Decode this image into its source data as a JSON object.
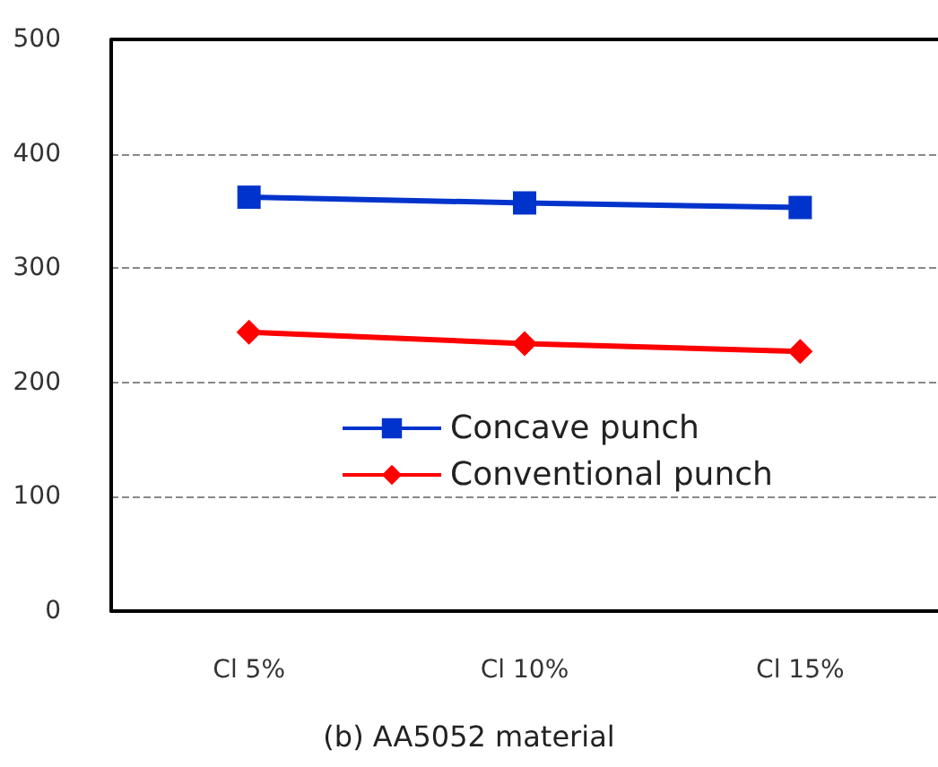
{
  "chart_data": {
    "type": "line",
    "title": "(b) AA5052 material",
    "categories": [
      "Cl 5%",
      "Cl 10%",
      "Cl 15%"
    ],
    "series": [
      {
        "name": "Concave punch",
        "color": "#0033cc",
        "values": [
          362,
          357,
          353
        ],
        "marker": "square"
      },
      {
        "name": "Conventional punch",
        "color": "#ff0000",
        "values": [
          244,
          234,
          227
        ],
        "marker": "diamond"
      }
    ],
    "ylim": [
      0,
      500
    ],
    "yticks": [
      0,
      100,
      200,
      300,
      400,
      500
    ],
    "grid": "y",
    "legend": "bottom",
    "line_style": "solid"
  }
}
